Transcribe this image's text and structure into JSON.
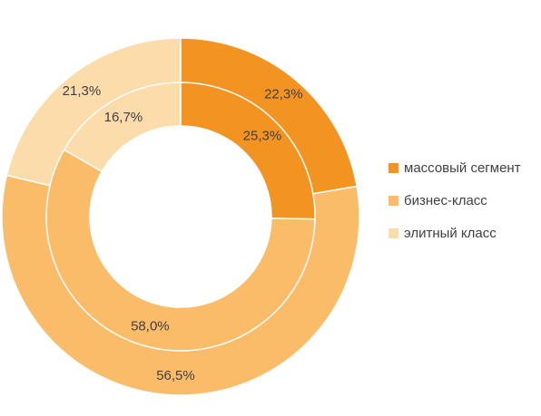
{
  "chart_data": {
    "type": "donut",
    "title": "",
    "categories": [
      "массовый сегмент",
      "бизнес-класс",
      "элитный класс"
    ],
    "colors": [
      "#f39322",
      "#fbbc69",
      "#fddcab"
    ],
    "series": [
      {
        "ring": "outer",
        "values": [
          22.3,
          56.5,
          21.3
        ],
        "labels": [
          "22,3%",
          "56,5%",
          "21,3%"
        ]
      },
      {
        "ring": "inner",
        "values": [
          25.3,
          58.0,
          16.7
        ],
        "labels": [
          "25,3%",
          "58,0%",
          "16,7%"
        ]
      }
    ],
    "legend_position": "right"
  }
}
